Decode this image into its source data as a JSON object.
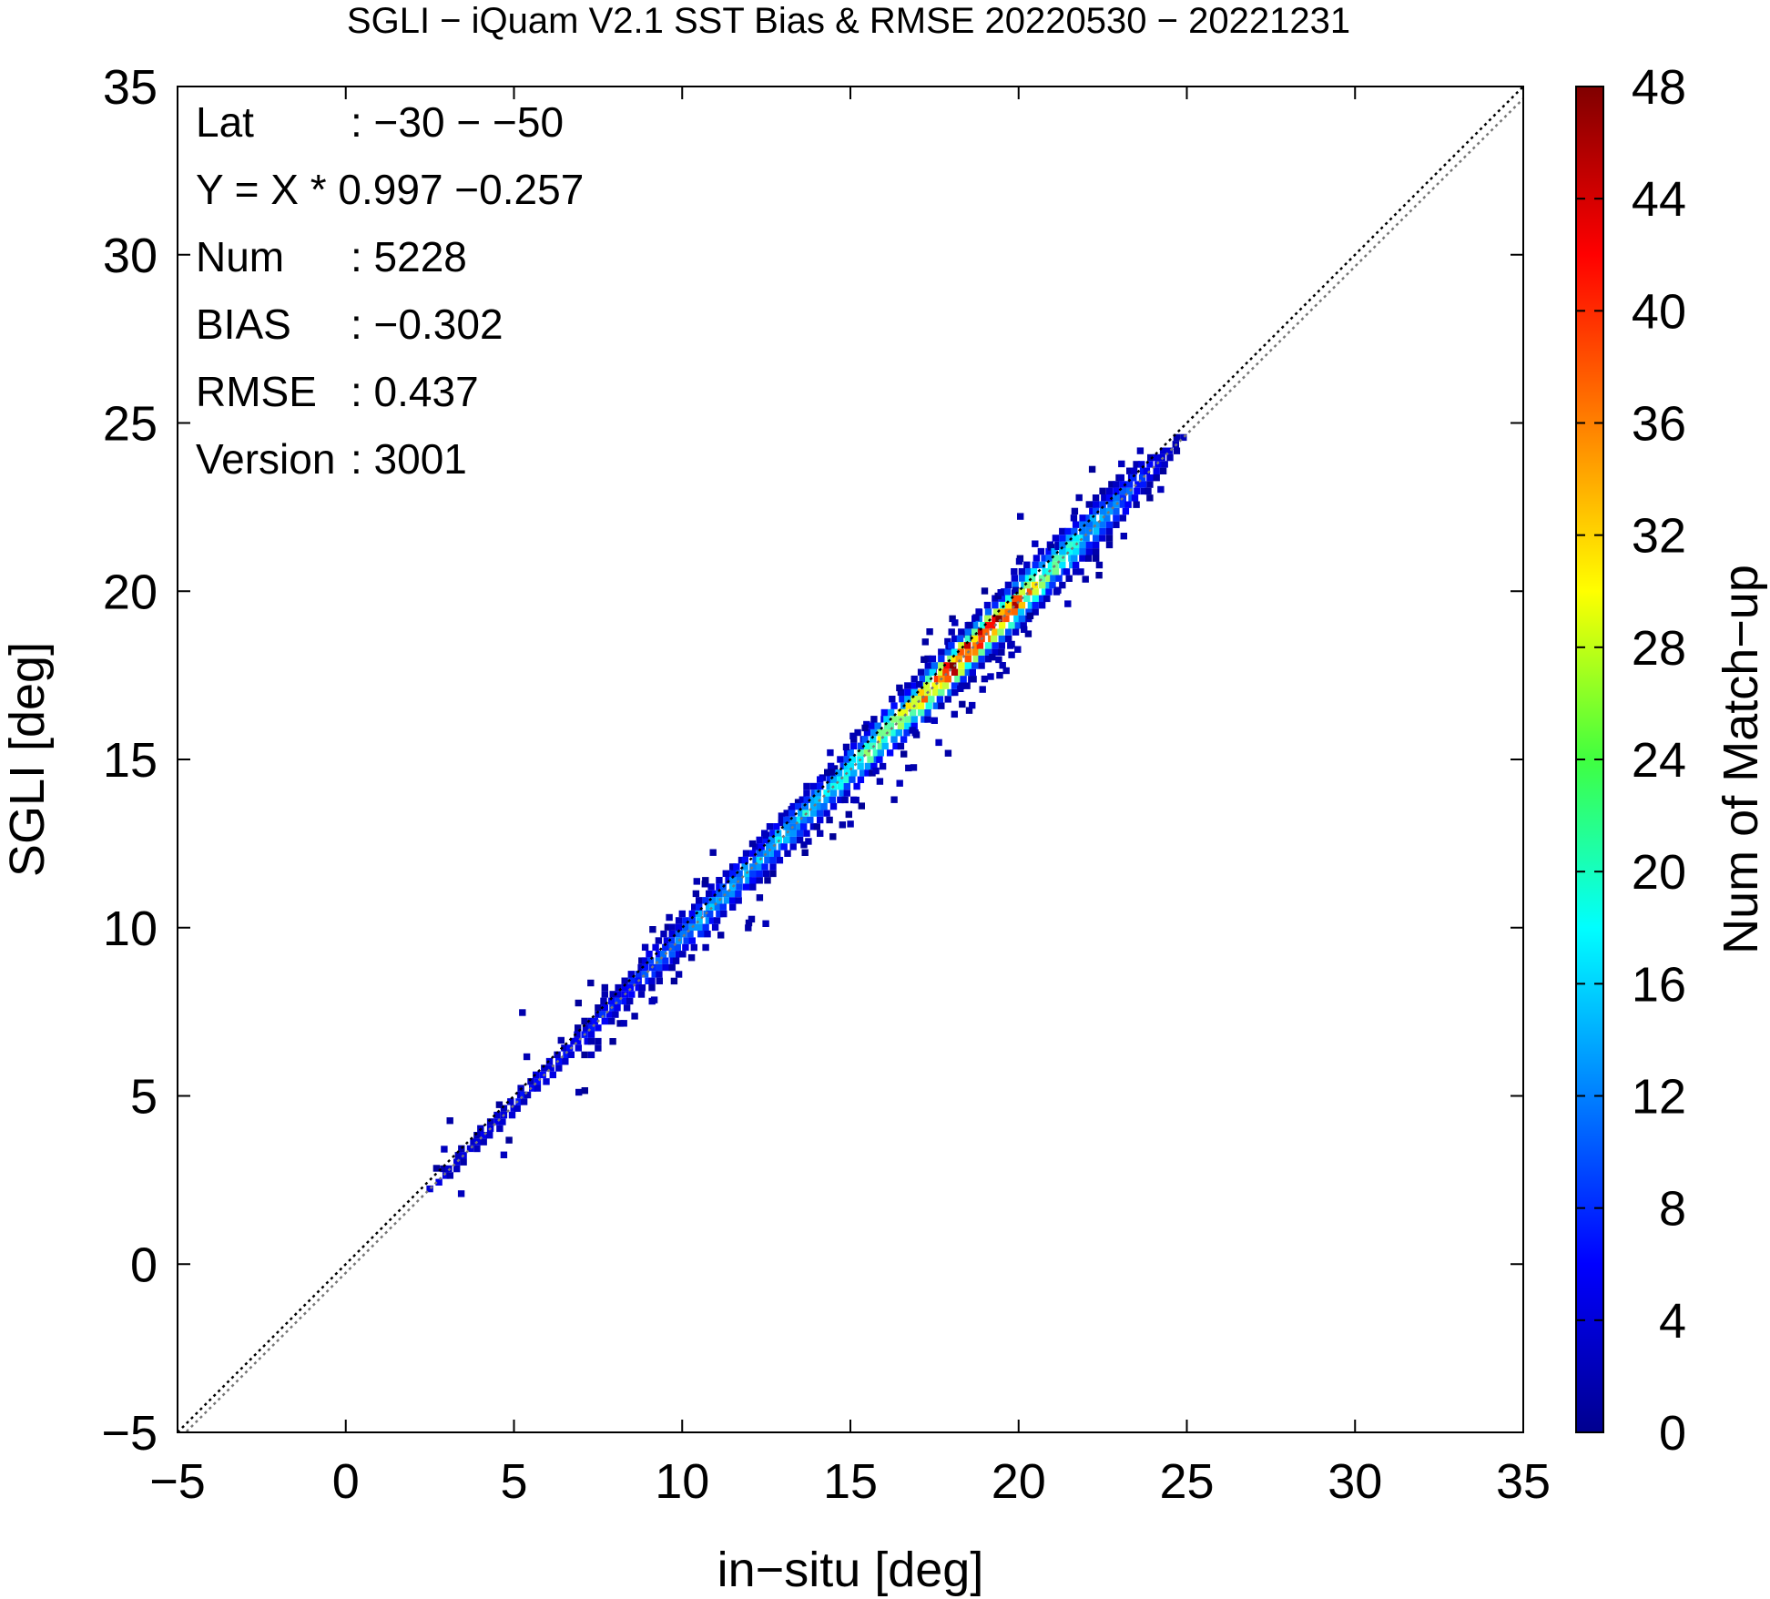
{
  "chart_data": {
    "type": "heatmap",
    "title": "SGLI − iQuam V2.1 SST Bias & RMSE 20220530 − 20221231",
    "xlabel": "in−situ [deg]",
    "ylabel": "SGLI [deg]",
    "xlim": [
      -5,
      35
    ],
    "ylim": [
      -5,
      35
    ],
    "xticks": [
      -5,
      0,
      5,
      10,
      15,
      20,
      25,
      30,
      35
    ],
    "yticks": [
      -5,
      0,
      5,
      10,
      15,
      20,
      25,
      30,
      35
    ],
    "tick_labels": [
      "−5",
      "0",
      "5",
      "10",
      "15",
      "20",
      "25",
      "30",
      "35"
    ],
    "grid": false,
    "reference_lines": [
      {
        "name": "1:1 line",
        "slope": 1.0,
        "intercept": 0.0,
        "style": "dotted",
        "color": "#000000"
      },
      {
        "name": "regression",
        "slope": 0.997,
        "intercept": -0.257,
        "style": "dotted",
        "color": "#777777"
      }
    ],
    "colorbar": {
      "label": "Num of Match−up",
      "range": [
        0,
        48
      ],
      "ticks": [
        0,
        4,
        8,
        12,
        16,
        20,
        24,
        28,
        32,
        36,
        40,
        44,
        48
      ],
      "colormap": "jet"
    },
    "density_ridge": [
      {
        "x": 2.4,
        "count": 4,
        "spread": 0.15
      },
      {
        "x": 4.0,
        "count": 5,
        "spread": 0.2
      },
      {
        "x": 5.5,
        "count": 6,
        "spread": 0.2
      },
      {
        "x": 7.0,
        "count": 6,
        "spread": 0.25
      },
      {
        "x": 8.5,
        "count": 8,
        "spread": 0.3
      },
      {
        "x": 9.5,
        "count": 10,
        "spread": 0.35
      },
      {
        "x": 10.5,
        "count": 14,
        "spread": 0.35
      },
      {
        "x": 11.5,
        "count": 12,
        "spread": 0.35
      },
      {
        "x": 12.5,
        "count": 14,
        "spread": 0.35
      },
      {
        "x": 13.5,
        "count": 16,
        "spread": 0.35
      },
      {
        "x": 14.5,
        "count": 18,
        "spread": 0.35
      },
      {
        "x": 15.5,
        "count": 22,
        "spread": 0.35
      },
      {
        "x": 16.5,
        "count": 30,
        "spread": 0.35
      },
      {
        "x": 17.5,
        "count": 40,
        "spread": 0.35
      },
      {
        "x": 18.5,
        "count": 46,
        "spread": 0.35
      },
      {
        "x": 19.5,
        "count": 42,
        "spread": 0.35
      },
      {
        "x": 20.5,
        "count": 26,
        "spread": 0.4
      },
      {
        "x": 21.5,
        "count": 18,
        "spread": 0.4
      },
      {
        "x": 22.5,
        "count": 12,
        "spread": 0.4
      },
      {
        "x": 23.5,
        "count": 8,
        "spread": 0.35
      },
      {
        "x": 24.5,
        "count": 3,
        "spread": 0.2
      }
    ],
    "stats": {
      "lat": {
        "label": "Lat",
        "value": ": −30 − −50"
      },
      "fit": {
        "label": "Y = X * 0.997 −0.257"
      },
      "num": {
        "label": "Num",
        "value": ": 5228"
      },
      "bias": {
        "label": "BIAS",
        "value": ": −0.302"
      },
      "rmse": {
        "label": "RMSE",
        "value": ": 0.437"
      },
      "version": {
        "label": "Version",
        "value": ": 3001"
      }
    }
  }
}
